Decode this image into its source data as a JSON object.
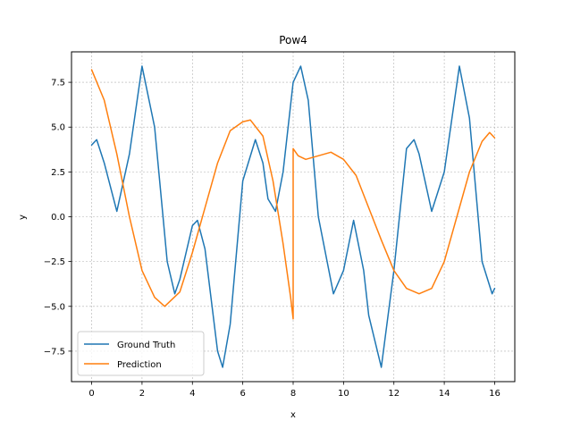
{
  "chart_data": {
    "type": "line",
    "title": "Pow4",
    "xlabel": "x",
    "ylabel": "y",
    "xlim": [
      -0.8,
      16.8
    ],
    "ylim": [
      -9.2,
      9.2
    ],
    "xticks": [
      0,
      2,
      4,
      6,
      8,
      10,
      12,
      14,
      16
    ],
    "yticks": [
      -7.5,
      -5.0,
      -2.5,
      0.0,
      2.5,
      5.0,
      7.5
    ],
    "xtick_labels": [
      "0",
      "2",
      "4",
      "6",
      "8",
      "10",
      "12",
      "14",
      "16"
    ],
    "ytick_labels": [
      "−7.5",
      "−5.0",
      "−2.5",
      "0.0",
      "2.5",
      "5.0",
      "7.5"
    ],
    "grid": true,
    "legend_position": "lower-left",
    "series": [
      {
        "name": "Ground Truth",
        "color": "#1f77b4",
        "x": [
          0.0,
          0.2,
          0.5,
          1.0,
          1.5,
          2.0,
          2.5,
          3.0,
          3.3,
          3.5,
          4.0,
          4.2,
          4.5,
          5.0,
          5.2,
          5.5,
          6.0,
          6.5,
          6.8,
          7.0,
          7.3,
          7.6,
          8.0,
          8.3,
          8.6,
          9.0,
          9.6,
          10.0,
          10.4,
          10.8,
          11.0,
          11.5,
          12.0,
          12.5,
          12.8,
          13.0,
          13.5,
          14.0,
          14.6,
          15.0,
          15.5,
          15.9,
          16.0
        ],
        "y": [
          4.0,
          4.3,
          3.0,
          0.3,
          3.5,
          8.4,
          5.0,
          -2.5,
          -4.3,
          -3.5,
          -0.5,
          -0.2,
          -1.8,
          -7.5,
          -8.4,
          -6.0,
          2.0,
          4.3,
          3.0,
          1.0,
          0.3,
          2.5,
          7.5,
          8.4,
          6.5,
          0.0,
          -4.3,
          -3.0,
          -0.2,
          -3.0,
          -5.5,
          -8.4,
          -3.0,
          3.8,
          4.3,
          3.5,
          0.3,
          2.5,
          8.4,
          5.5,
          -2.5,
          -4.3,
          -4.0
        ]
      },
      {
        "name": "Prediction",
        "color": "#ff7f0e",
        "x": [
          0.0,
          0.5,
          1.0,
          1.5,
          2.0,
          2.5,
          2.9,
          3.5,
          4.0,
          4.5,
          5.0,
          5.5,
          6.0,
          6.3,
          6.8,
          7.2,
          7.6,
          7.9,
          8.0,
          8.0,
          8.2,
          8.5,
          9.0,
          9.5,
          10.0,
          10.5,
          11.0,
          11.5,
          12.0,
          12.5,
          13.0,
          13.5,
          14.0,
          14.5,
          15.0,
          15.5,
          15.8,
          16.0
        ],
        "y": [
          8.2,
          6.5,
          3.5,
          0.0,
          -3.0,
          -4.5,
          -5.0,
          -4.2,
          -2.0,
          0.5,
          3.0,
          4.8,
          5.3,
          5.4,
          4.5,
          2.0,
          -1.5,
          -4.5,
          -5.7,
          3.8,
          3.4,
          3.2,
          3.4,
          3.6,
          3.2,
          2.3,
          0.5,
          -1.3,
          -3.0,
          -4.0,
          -4.3,
          -4.0,
          -2.5,
          0.0,
          2.5,
          4.2,
          4.7,
          4.4
        ]
      }
    ]
  }
}
